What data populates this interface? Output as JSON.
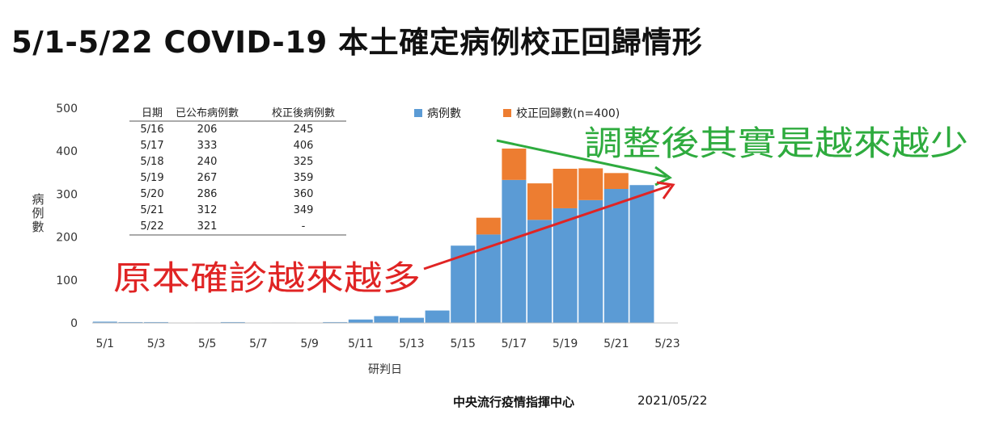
{
  "title": "5/1-5/22 COVID-19 本土確定病例校正回歸情形",
  "footer": {
    "org": "中央流行疫情指揮中心",
    "date": "2021/05/22"
  },
  "colors": {
    "cases": "#5b9bd5",
    "backfill": "#ed7d31",
    "down_arrow": "#2eab3e",
    "up_arrow": "#e02424"
  },
  "annotations": {
    "up": "原本確診越來越多",
    "down": "調整後其實是越來越少"
  },
  "table": {
    "headers": [
      "日期",
      "已公布病例數",
      "校正後病例數"
    ],
    "rows": [
      [
        "5/16",
        "206",
        "245"
      ],
      [
        "5/17",
        "333",
        "406"
      ],
      [
        "5/18",
        "240",
        "325"
      ],
      [
        "5/19",
        "267",
        "359"
      ],
      [
        "5/20",
        "286",
        "360"
      ],
      [
        "5/21",
        "312",
        "349"
      ],
      [
        "5/22",
        "321",
        "-"
      ]
    ]
  },
  "chart_data": {
    "type": "bar",
    "stacked": true,
    "title": "",
    "xlabel": "研判日",
    "ylabel": "病例數",
    "ylim": [
      0,
      500
    ],
    "yticks": [
      0,
      100,
      200,
      300,
      400,
      500
    ],
    "categories": [
      "5/1",
      "5/2",
      "5/3",
      "5/4",
      "5/5",
      "5/6",
      "5/7",
      "5/8",
      "5/9",
      "5/10",
      "5/11",
      "5/12",
      "5/13",
      "5/14",
      "5/15",
      "5/16",
      "5/17",
      "5/18",
      "5/19",
      "5/20",
      "5/21",
      "5/22",
      "5/23"
    ],
    "xtick_labels": [
      "5/1",
      "5/3",
      "5/5",
      "5/7",
      "5/9",
      "5/11",
      "5/13",
      "5/15",
      "5/17",
      "5/19",
      "5/21",
      "5/23"
    ],
    "legend_position": "top-right",
    "series": [
      {
        "name": "病例數",
        "values": [
          3,
          2,
          2,
          0,
          1,
          2,
          0,
          1,
          0,
          2,
          8,
          16,
          12,
          29,
          180,
          206,
          333,
          240,
          267,
          286,
          312,
          321,
          0
        ]
      },
      {
        "name": "校正回歸數(n=400)",
        "values": [
          0,
          0,
          0,
          0,
          0,
          0,
          0,
          0,
          0,
          0,
          0,
          0,
          0,
          0,
          0,
          39,
          73,
          85,
          92,
          74,
          37,
          0,
          0
        ]
      }
    ]
  }
}
